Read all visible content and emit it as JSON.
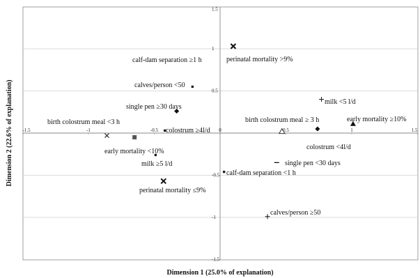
{
  "chart_data": {
    "type": "scatter",
    "title": "",
    "xlabel": "Dimension 1 (25.0% of explanation)",
    "ylabel": "Dimension 2 (22.6% of explanation)",
    "xlim": [
      -1.5,
      1.5
    ],
    "ylim": [
      -1.5,
      1.5
    ],
    "grid": "horizontal",
    "x_ticks": [
      {
        "v": -1.5,
        "label": "-1.5"
      },
      {
        "v": -1,
        "label": "-1"
      },
      {
        "v": -0.5,
        "label": "-0.5"
      },
      {
        "v": 0,
        "label": "0"
      },
      {
        "v": 0.5,
        "label": "0.5"
      },
      {
        "v": 1,
        "label": "1"
      },
      {
        "v": 1.5,
        "label": "1.5"
      }
    ],
    "y_ticks": [
      {
        "v": 1.5,
        "label": "1.5"
      },
      {
        "v": 1,
        "label": "1"
      },
      {
        "v": 0.5,
        "label": "0.5"
      },
      {
        "v": -0.5,
        "label": "-0.5"
      },
      {
        "v": -1,
        "label": "-1"
      },
      {
        "v": -1.5,
        "label": "-1.5"
      }
    ],
    "points": [
      {
        "label": "perinatal mortality >9%",
        "x": 0.1,
        "y": 1.03,
        "marker": "x-bold"
      },
      {
        "label": "calf-dam separation ≥1 h",
        "x": -0.6,
        "y": 0.85,
        "marker": "none"
      },
      {
        "label": "calves/person <50",
        "x": -0.21,
        "y": 0.55,
        "marker": "dot"
      },
      {
        "label": "single pen ≥30 days",
        "x": -0.33,
        "y": 0.26,
        "marker": "diamond"
      },
      {
        "label": "birth colostrum meal <3 h",
        "x": -0.86,
        "y": -0.03,
        "marker": "x"
      },
      {
        "label": "colostrum ≥4l/d",
        "x": -0.42,
        "y": 0.03,
        "marker": "dot"
      },
      {
        "label": "early mortality <10%",
        "x": -0.65,
        "y": -0.05,
        "marker": "square"
      },
      {
        "label": "milk ≥5 l/d",
        "x": -0.49,
        "y": -0.26,
        "marker": "dot"
      },
      {
        "label": "perinatal mortality ≤9%",
        "x": -0.43,
        "y": -0.57,
        "marker": "x-bold"
      },
      {
        "label": "calf-dam separation <1 h",
        "x": 0.03,
        "y": -0.46,
        "marker": "dot"
      },
      {
        "label": "milk <5 l/d",
        "x": 0.77,
        "y": 0.4,
        "marker": "plus"
      },
      {
        "label": "birth colostrum meal ≥ 3 h",
        "x": 0.47,
        "y": 0.02,
        "marker": "triangle-open"
      },
      {
        "label": "early mortality ≥10%",
        "x": 1.01,
        "y": 0.11,
        "marker": "triangle"
      },
      {
        "label": "colostrum <4l/d",
        "x": 0.74,
        "y": 0.05,
        "marker": "diamond"
      },
      {
        "label": "single pen <30 days",
        "x": 0.43,
        "y": -0.35,
        "marker": "dash"
      },
      {
        "label": "calves/person ≥50",
        "x": 0.36,
        "y": -0.99,
        "marker": "plus"
      }
    ]
  }
}
